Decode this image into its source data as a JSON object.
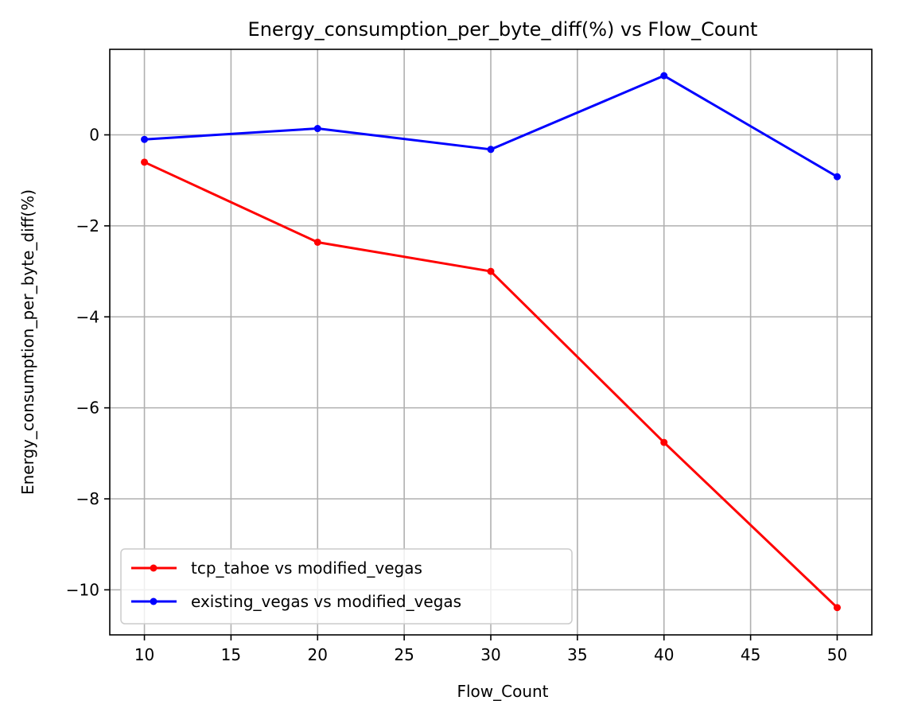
{
  "chart_data": {
    "type": "line",
    "title": "Energy_consumption_per_byte_diff(%) vs Flow_Count",
    "xlabel": "Flow_Count",
    "ylabel": "Energy_consumption_per_byte_diff(%)",
    "xlim": [
      8.0,
      52.0
    ],
    "ylim": [
      -10.99,
      1.88
    ],
    "xticks": [
      10,
      15,
      20,
      25,
      30,
      35,
      40,
      45,
      50
    ],
    "xtick_labels": [
      "10",
      "15",
      "20",
      "25",
      "30",
      "35",
      "40",
      "45",
      "50"
    ],
    "yticks": [
      0,
      -2,
      -4,
      -6,
      -8,
      -10
    ],
    "ytick_labels": [
      "0",
      "−2",
      "−4",
      "−6",
      "−8",
      "−10"
    ],
    "grid": true,
    "legend_position": "lower-left",
    "x": [
      10,
      20,
      30,
      40,
      50
    ],
    "series": [
      {
        "name": "tcp_tahoe vs modified_vegas",
        "color": "#ff0000",
        "marker": "circle",
        "values": [
          -0.6,
          -2.36,
          -3.0,
          -6.76,
          -10.39
        ]
      },
      {
        "name": "existing_vegas vs modified_vegas",
        "color": "#0000ff",
        "marker": "circle",
        "values": [
          -0.1,
          0.14,
          -0.32,
          1.3,
          -0.92
        ]
      }
    ]
  }
}
